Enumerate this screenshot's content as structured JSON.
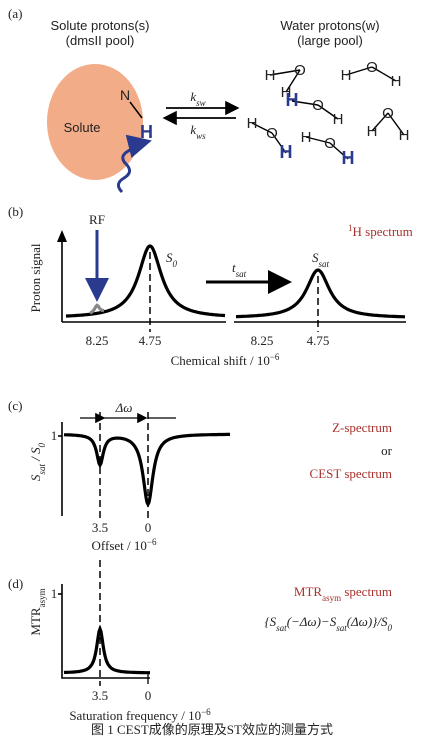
{
  "panel_a": {
    "label": "(a)",
    "solute_title": "Solute protons(s)",
    "solute_subtitle": "(dmsII pool)",
    "water_title": "Water protons(w)",
    "water_subtitle": "(large pool)",
    "solute": "Solute",
    "nitrogen": "N",
    "solute_h": "H",
    "k_forward": {
      "main": "k",
      "sub": "sw"
    },
    "k_backward": {
      "main": "k",
      "sub": "ws"
    },
    "molecules": [
      {
        "o": "O",
        "h1": "H",
        "h2": "H"
      },
      {
        "o": "O",
        "h1": "H",
        "h2": "H"
      },
      {
        "o": "O",
        "h1": "H",
        "h2": "H"
      },
      {
        "o": "O",
        "h1": "H",
        "h2": "H"
      },
      {
        "o": "O",
        "h1": "H",
        "h2": "H"
      },
      {
        "o": "O",
        "h1": "H",
        "h2": "H"
      }
    ]
  },
  "panel_b": {
    "label": "(b)",
    "y_label": "Proton signal",
    "rf": "RF",
    "s0": {
      "main": "S",
      "sub": "0"
    },
    "tsat": {
      "main": "t",
      "sub": "sat"
    },
    "ssat": {
      "main": "S",
      "sub": "sat"
    },
    "spectrum": {
      "sup": "1",
      "main": "H spectrum"
    },
    "ticks_left": [
      "8.25",
      "4.75"
    ],
    "ticks_right": [
      "8.25",
      "4.75"
    ],
    "x_label": {
      "main": "Chemical shift / 10",
      "sup": "−6"
    }
  },
  "panel_c": {
    "label": "(c)",
    "delta": "Δω",
    "y_label": [
      "S",
      "sat",
      " / S",
      "0"
    ],
    "y_one": "1",
    "z_spectrum": "Z-spectrum",
    "or": "or",
    "cest_spectrum": "CEST spectrum",
    "ticks": [
      "3.5",
      "0"
    ],
    "x_label": {
      "main": "Offset / 10",
      "sup": "−6"
    }
  },
  "panel_d": {
    "label": "(d)",
    "y_label": {
      "main": "MTR",
      "sub": "asym"
    },
    "y_one": "1",
    "spectrum": {
      "main": "MTR",
      "sub": "asym",
      "rest": " spectrum"
    },
    "formula": [
      "{S",
      "sat",
      "(−Δω)−S",
      "sat",
      "(Δω)}/S",
      "0"
    ],
    "ticks": [
      "3.5",
      "0"
    ],
    "x_label": {
      "main": "Saturation frequency / 10",
      "sup": "−6"
    }
  },
  "caption": "图 1    CEST成像的原理及ST效应的测量方式"
}
